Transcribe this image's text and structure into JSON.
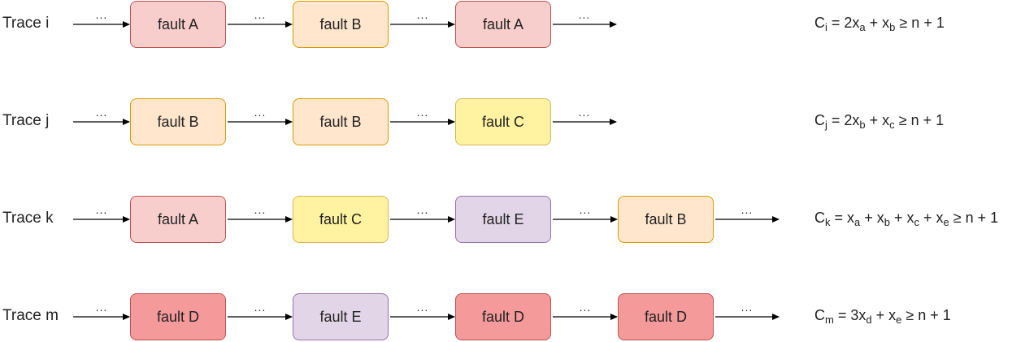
{
  "colors": {
    "A": {
      "fill": "#f8cecc",
      "stroke": "#b85450"
    },
    "B": {
      "fill": "#ffe6cc",
      "stroke": "#d79b00"
    },
    "C": {
      "fill": "#fff2a0",
      "stroke": "#d6b656"
    },
    "D": {
      "fill": "#f59a9a",
      "stroke": "#b85450"
    },
    "E": {
      "fill": "#e1d5e7",
      "stroke": "#9673a6"
    }
  },
  "ellipsis": "...",
  "rows": [
    {
      "label": "Trace i",
      "boxes": [
        {
          "text": "fault A",
          "color": "A"
        },
        {
          "text": "fault B",
          "color": "B"
        },
        {
          "text": "fault A",
          "color": "A"
        }
      ],
      "formula": {
        "lhs": "C",
        "lhs_sub": "i",
        "terms": [
          {
            "coef": "2x",
            "sub": "a"
          },
          {
            "coef": "x",
            "sub": "b"
          }
        ],
        "rhs": "≥ n + 1"
      }
    },
    {
      "label": "Trace j",
      "boxes": [
        {
          "text": "fault B",
          "color": "B"
        },
        {
          "text": "fault B",
          "color": "B"
        },
        {
          "text": "fault C",
          "color": "C"
        }
      ],
      "formula": {
        "lhs": "C",
        "lhs_sub": "j",
        "terms": [
          {
            "coef": "2x",
            "sub": "b"
          },
          {
            "coef": "x",
            "sub": "c"
          }
        ],
        "rhs": "≥ n + 1"
      }
    },
    {
      "label": "Trace k",
      "boxes": [
        {
          "text": "fault A",
          "color": "A"
        },
        {
          "text": "fault C",
          "color": "C"
        },
        {
          "text": "fault E",
          "color": "E"
        },
        {
          "text": "fault B",
          "color": "B"
        }
      ],
      "formula": {
        "lhs": "C",
        "lhs_sub": "k",
        "terms": [
          {
            "coef": "x",
            "sub": "a"
          },
          {
            "coef": "x",
            "sub": "b"
          },
          {
            "coef": "x",
            "sub": "c"
          },
          {
            "coef": "x",
            "sub": "e"
          }
        ],
        "rhs": "≥ n + 1"
      }
    },
    {
      "label": "Trace m",
      "boxes": [
        {
          "text": "fault D",
          "color": "D"
        },
        {
          "text": "fault E",
          "color": "E"
        },
        {
          "text": "fault D",
          "color": "D"
        },
        {
          "text": "fault D",
          "color": "D"
        }
      ],
      "formula": {
        "lhs": "C",
        "lhs_sub": "m",
        "terms": [
          {
            "coef": "3x",
            "sub": "d"
          },
          {
            "coef": "x",
            "sub": "e"
          }
        ],
        "rhs": "≥ n + 1"
      }
    }
  ]
}
